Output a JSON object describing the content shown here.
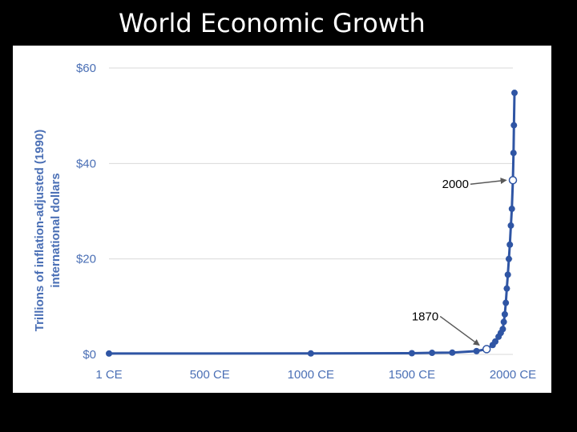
{
  "slide": {
    "title": "World Economic Growth"
  },
  "chart_data": {
    "type": "line",
    "title": "World Economic Growth",
    "xlabel": "",
    "ylabel": "Trillions of inflation-adjusted (1990) international dollars",
    "ylabel_lines": [
      "Trillions of inflation-adjusted (1990)",
      "international dollars"
    ],
    "x_ticks": [
      1,
      500,
      1000,
      1500,
      2000
    ],
    "x_tick_labels": [
      "1 CE",
      "500 CE",
      "1000 CE",
      "1500 CE",
      "2000 CE"
    ],
    "y_ticks": [
      0,
      20,
      40,
      60
    ],
    "y_tick_labels": [
      "$0",
      "$20",
      "$40",
      "$60"
    ],
    "xlim": [
      1,
      2000
    ],
    "ylim": [
      0,
      60
    ],
    "grid": true,
    "color": "#2f55a4",
    "series": [
      {
        "x": [
          1,
          1000,
          1500,
          1600,
          1700,
          1820,
          1870,
          1900,
          1913,
          1929,
          1940,
          1950,
          1955,
          1960,
          1965,
          1970,
          1975,
          1980,
          1985,
          1990,
          1995,
          2000,
          2003,
          2005,
          2008
        ],
        "y": [
          0.18,
          0.2,
          0.25,
          0.33,
          0.37,
          0.69,
          1.1,
          1.97,
          2.7,
          3.7,
          4.5,
          5.3,
          6.8,
          8.4,
          10.8,
          13.8,
          16.7,
          20,
          23,
          27,
          30.5,
          36.5,
          42.2,
          48,
          54.8
        ]
      }
    ],
    "annotations": [
      {
        "text": "2000",
        "x": 2000,
        "y": 36.5
      },
      {
        "text": "1870",
        "x": 1870,
        "y": 1.1
      }
    ]
  }
}
